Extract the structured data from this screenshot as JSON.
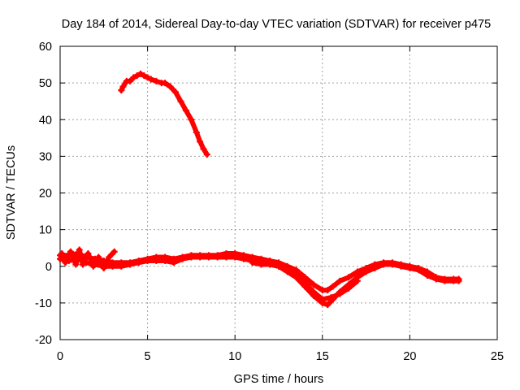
{
  "chart_data": {
    "type": "scatter",
    "title": "Day 184 of 2014, Sidereal Day-to-day VTEC variation (SDTVAR) for receiver p475",
    "xlabel": "GPS time / hours",
    "ylabel": "SDTVAR / TECUs",
    "xlim": [
      0,
      25
    ],
    "ylim": [
      -20,
      60
    ],
    "xticks": [
      0,
      5,
      10,
      15,
      20,
      25
    ],
    "yticks": [
      -20,
      -10,
      0,
      10,
      20,
      30,
      40,
      50,
      60
    ],
    "grid": true,
    "series_color": "#ff0000",
    "series": [
      {
        "name": "arc-high",
        "x": [
          3.5,
          3.6,
          3.8,
          4.0,
          4.2,
          4.4,
          4.6,
          4.8,
          5.0,
          5.2,
          5.5,
          5.8,
          6.0,
          6.3,
          6.6,
          6.9,
          7.2,
          7.5,
          7.8,
          8.0,
          8.2,
          8.4
        ],
        "y": [
          48,
          49,
          50.5,
          50.5,
          51.5,
          52,
          52.5,
          52,
          51.5,
          51,
          50.5,
          50,
          50,
          49,
          47.5,
          45,
          42.5,
          40,
          36.5,
          34,
          32,
          30.5
        ]
      },
      {
        "name": "low-band-upper",
        "x": [
          0,
          0.5,
          1.0,
          1.5,
          2.0,
          2.5,
          3.0,
          3.5,
          4.0,
          4.5,
          5.0,
          5.5,
          6.0,
          6.5,
          7.0,
          7.5,
          8.0,
          8.5,
          9.0,
          9.5,
          10.0,
          10.5,
          11.0,
          11.5,
          12.0,
          12.5,
          13.0,
          13.5,
          14.0,
          14.5,
          15.0,
          15.3,
          15.6,
          16.0,
          16.5,
          17.0,
          17.5,
          18.0,
          18.5,
          19.0,
          19.5,
          20.0,
          20.5,
          21.0,
          21.5,
          22.0,
          22.5,
          22.8
        ],
        "y": [
          3,
          3,
          3.5,
          2.5,
          2,
          1.5,
          1,
          1,
          1,
          1.5,
          2,
          2.5,
          2.5,
          2,
          2.5,
          3,
          3,
          3,
          3,
          3.5,
          3.5,
          3,
          2.5,
          2,
          1.5,
          1,
          0,
          -1,
          -3,
          -5,
          -6.5,
          -6.5,
          -5.5,
          -4,
          -3,
          -1.5,
          -0.5,
          0.5,
          1,
          1,
          0.5,
          0,
          -0.5,
          -1.5,
          -3,
          -3.5,
          -3.5,
          -3.5
        ]
      },
      {
        "name": "low-band-lower",
        "x": [
          0,
          0.5,
          1.0,
          1.5,
          2.0,
          2.5,
          3.0,
          3.5,
          4.0,
          4.5,
          5.0,
          5.5,
          6.0,
          6.5,
          7.0,
          7.5,
          8.0,
          8.5,
          9.0,
          9.5,
          10.0,
          10.5,
          11.0,
          11.5,
          12.0,
          12.5,
          13.0,
          13.5,
          14.0,
          14.5,
          15.0,
          15.3,
          15.6,
          16.0,
          16.5,
          17.0,
          17.5,
          18.0,
          18.5,
          19.0,
          19.5,
          20.0,
          20.5,
          21.0,
          21.5,
          22.0,
          22.5,
          22.8
        ],
        "y": [
          2,
          1.5,
          2,
          1,
          0.5,
          0,
          0,
          0,
          0.5,
          1,
          1.5,
          1.5,
          1.5,
          1,
          2,
          2.5,
          2.5,
          2.5,
          2.5,
          2.5,
          2.5,
          2,
          1.5,
          1,
          0.5,
          0,
          -1.5,
          -3,
          -5.5,
          -8,
          -10,
          -10.5,
          -9,
          -7,
          -5,
          -3,
          -1.5,
          -0.5,
          0.5,
          0.5,
          0,
          -0.5,
          -1,
          -2.5,
          -3.5,
          -4,
          -4,
          -4
        ]
      },
      {
        "name": "low-band-extra",
        "x": [
          11.0,
          11.5,
          12.0,
          12.5,
          13.0,
          13.5,
          14.0,
          14.5,
          15.0,
          15.5,
          16.0,
          16.5,
          17.0
        ],
        "y": [
          1,
          0.5,
          0.5,
          0,
          -1,
          -2.5,
          -4.5,
          -7,
          -9,
          -8.5,
          -7.5,
          -6,
          -4
        ]
      },
      {
        "name": "start-spikes",
        "x": [
          0.1,
          0.3,
          0.6,
          0.9,
          1.1,
          1.3,
          1.6,
          1.9,
          2.2,
          2.5,
          2.8,
          3.1
        ],
        "y": [
          3.5,
          1,
          4,
          0.5,
          4.5,
          0.5,
          3.5,
          0,
          2.5,
          -0.5,
          2.5,
          4
        ]
      }
    ]
  }
}
